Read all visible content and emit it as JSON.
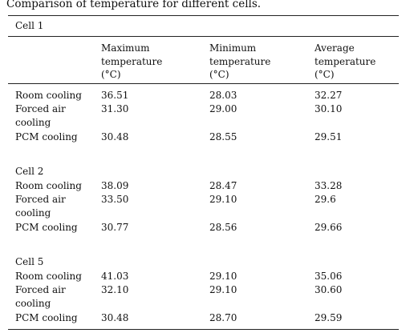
{
  "caption": "Comparison of temperature for different cells.",
  "header": {
    "first_group_label": "Cell 1",
    "col_max": [
      "Maximum",
      "temperature",
      "(°C)"
    ],
    "col_min": [
      "Minimum",
      "temperature",
      "(°C)"
    ],
    "col_avg": [
      "Average",
      "temperature",
      "(°C)"
    ]
  },
  "groups": [
    {
      "label": "",
      "rows": [
        {
          "method": "Room cooling",
          "max": "36.51",
          "min": "28.03",
          "avg": "32.27"
        },
        {
          "method": "Forced air cooling",
          "max": "31.30",
          "min": "29.00",
          "avg": "30.10"
        },
        {
          "method": "PCM cooling",
          "max": "30.48",
          "min": "28.55",
          "avg": "29.51"
        }
      ]
    },
    {
      "label": "Cell 2",
      "rows": [
        {
          "method": "Room cooling",
          "max": "38.09",
          "min": "28.47",
          "avg": "33.28"
        },
        {
          "method": "Forced air cooling",
          "max": "33.50",
          "min": "29.10",
          "avg": "29.6"
        },
        {
          "method": "PCM cooling",
          "max": "30.77",
          "min": "28.56",
          "avg": "29.66"
        }
      ]
    },
    {
      "label": "Cell 5",
      "rows": [
        {
          "method": "Room cooling",
          "max": "41.03",
          "min": "29.10",
          "avg": "35.06"
        },
        {
          "method": "Forced air cooling",
          "max": "32.10",
          "min": "29.10",
          "avg": "30.60"
        },
        {
          "method": "PCM cooling",
          "max": "30.48",
          "min": "28.70",
          "avg": "29.59"
        }
      ]
    }
  ]
}
